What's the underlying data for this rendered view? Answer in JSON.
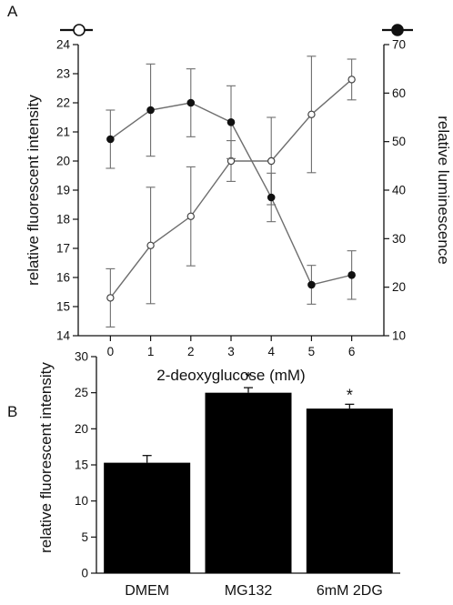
{
  "chart_data": [
    {
      "panel": "A",
      "type": "line",
      "xlabel": "2-deoxyglucose (mM)",
      "x": [
        0,
        1,
        2,
        3,
        4,
        5,
        6
      ],
      "xlim": [
        -0.8,
        6.8
      ],
      "xticks": [
        "0",
        "1",
        "2",
        "3",
        "4",
        "5",
        "6"
      ],
      "ylabel": "relative fluorescent intensity",
      "ylim": [
        14,
        24
      ],
      "yticks": [
        14,
        15,
        16,
        17,
        18,
        19,
        20,
        21,
        22,
        23,
        24
      ],
      "y2label": "relative luminescence",
      "y2lim": [
        10,
        70
      ],
      "y2ticks": [
        10,
        20,
        30,
        40,
        50,
        60,
        70
      ],
      "line_color": "#6e6e6e",
      "series": [
        {
          "axis": "left",
          "marker": "open-circle",
          "values": [
            15.3,
            17.1,
            18.1,
            20.0,
            20.0,
            21.6,
            22.8
          ],
          "errors": [
            1.0,
            2.0,
            1.7,
            0.7,
            1.5,
            2.0,
            0.7
          ]
        },
        {
          "axis": "right",
          "marker": "filled-circle",
          "values": [
            50.5,
            56.5,
            58.0,
            54.0,
            38.5,
            20.5,
            22.5
          ],
          "errors": [
            6.0,
            9.5,
            7.0,
            7.5,
            5.0,
            4.0,
            5.0
          ]
        }
      ],
      "grid": false
    },
    {
      "panel": "B",
      "type": "bar",
      "categories": [
        "DMEM",
        "MG132",
        "6mM 2DG"
      ],
      "values": [
        15.3,
        25.0,
        22.8
      ],
      "errors": [
        1.0,
        0.7,
        0.6
      ],
      "significance": [
        "",
        "*",
        "*"
      ],
      "ylabel": "relative fluorescent intensity",
      "ylim": [
        0,
        30
      ],
      "yticks": [
        0,
        5,
        10,
        15,
        20,
        25,
        30
      ],
      "bar_color": "#000000",
      "grid": false
    }
  ]
}
